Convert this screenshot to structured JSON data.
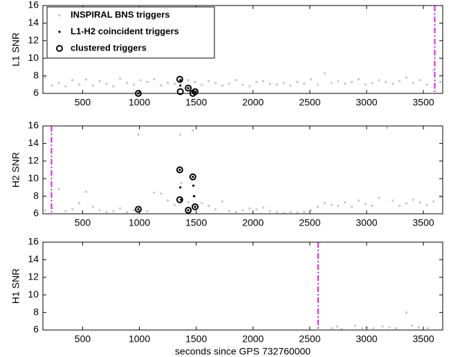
{
  "chart_data": [
    {
      "type": "scatter",
      "ylabel": "L1 SNR",
      "xlim": [
        150,
        3670
      ],
      "ylim": [
        6,
        16
      ],
      "xticks": [
        500,
        1000,
        1500,
        2000,
        2500,
        3000,
        3500
      ],
      "yticks": [
        6,
        8,
        10,
        12,
        14,
        16
      ],
      "legend": "upper left",
      "vline": 3600,
      "vline_color": "#e020e0",
      "series": [
        {
          "name": "INSPIRAL BNS triggers",
          "color": "#c8c8c8",
          "marker": "point",
          "x": [
            170,
            230,
            290,
            350,
            410,
            470,
            530,
            590,
            650,
            710,
            770,
            830,
            890,
            950,
            1010,
            1070,
            1130,
            1190,
            1250,
            1310,
            1370,
            1430,
            1490,
            1550,
            1610,
            1670,
            1730,
            1790,
            1850,
            1910,
            1970,
            2030,
            2090,
            2150,
            2210,
            2270,
            2330,
            2390,
            2450,
            2510,
            2570,
            2630,
            2690,
            2750,
            2810,
            2870,
            2930,
            2990,
            3050,
            3110,
            3170,
            3230,
            3290,
            3350,
            3410,
            3470,
            3530,
            3590,
            3650
          ],
          "values": [
            7.8,
            6.9,
            7.2,
            6.8,
            7.5,
            7.0,
            7.6,
            6.9,
            7.4,
            7.1,
            6.8,
            7.7,
            7.2,
            7.0,
            7.5,
            7.3,
            7.6,
            6.9,
            7.2,
            7.1,
            7.6,
            7.5,
            7.3,
            7.0,
            7.4,
            7.2,
            6.9,
            7.1,
            7.5,
            7.0,
            6.8,
            7.3,
            7.4,
            7.1,
            7.0,
            7.2,
            6.9,
            7.3,
            7.1,
            7.6,
            7.0,
            8.3,
            7.2,
            7.4,
            7.1,
            7.3,
            7.6,
            7.0,
            7.2,
            7.5,
            7.3,
            7.1,
            7.4,
            7.8,
            7.2,
            7.5,
            7.0,
            8.6,
            7.3
          ]
        },
        {
          "name": "L1-H2 coincident triggers",
          "color": "#000000",
          "marker": "dot",
          "x": [
            990,
            1360,
            1360,
            1430,
            1470,
            1490
          ],
          "values": [
            6.0,
            7.5,
            6.9,
            6.6,
            6.2,
            6.1
          ]
        },
        {
          "name": "clustered triggers",
          "color": "#000000",
          "marker": "circle",
          "x": [
            990,
            1355,
            1360,
            1430,
            1470,
            1490
          ],
          "values": [
            6.0,
            7.6,
            6.2,
            6.6,
            6.0,
            6.2
          ]
        }
      ]
    },
    {
      "type": "scatter",
      "ylabel": "H2 SNR",
      "xlim": [
        150,
        3670
      ],
      "ylim": [
        6,
        16
      ],
      "xticks": [
        500,
        1000,
        1500,
        2000,
        2500,
        3000,
        3500
      ],
      "yticks": [
        6,
        8,
        10,
        12,
        14,
        16
      ],
      "vline": 226,
      "vline_color": "#e020e0",
      "series": [
        {
          "color": "#c8c8c8",
          "marker": "point",
          "x": [
            170,
            230,
            290,
            350,
            410,
            470,
            530,
            590,
            650,
            710,
            770,
            830,
            890,
            950,
            990,
            1010,
            1070,
            1130,
            1190,
            1250,
            1310,
            1360,
            1370,
            1430,
            1470,
            1490,
            1550,
            1610,
            1670,
            1730,
            1790,
            1850,
            1910,
            1970,
            2030,
            2090,
            2150,
            2210,
            2270,
            2330,
            2390,
            2450,
            2510,
            2570,
            2630,
            2690,
            2750,
            2810,
            2870,
            2930,
            2990,
            3050,
            3110,
            3180,
            3230,
            3290,
            3350,
            3410,
            3470,
            3530,
            3590,
            3650
          ],
          "values": [
            6.4,
            6.6,
            8.8,
            6.3,
            6.5,
            7.2,
            8.5,
            6.8,
            6.4,
            6.2,
            6.3,
            6.6,
            6.2,
            6.4,
            15.0,
            6.8,
            6.3,
            8.4,
            8.3,
            7.5,
            7.0,
            15.0,
            9.5,
            7.3,
            15.5,
            8.0,
            7.2,
            6.9,
            6.5,
            7.4,
            6.3,
            6.2,
            6.4,
            6.6,
            6.5,
            6.7,
            6.3,
            6.2,
            6.1,
            6.2,
            6.1,
            6.2,
            6.4,
            6.8,
            7.2,
            7.0,
            6.9,
            7.3,
            6.8,
            7.5,
            7.1,
            6.9,
            7.8,
            15.8,
            7.5,
            6.9,
            7.2,
            7.6,
            7.3,
            7.0,
            7.4,
            7.9
          ]
        },
        {
          "color": "#000000",
          "marker": "dot",
          "x": [
            990,
            1355,
            1360,
            1365,
            1430,
            1470,
            1475,
            1480,
            1490
          ],
          "values": [
            6.5,
            11.0,
            9.0,
            7.6,
            6.4,
            10.2,
            9.2,
            8.0,
            6.8
          ]
        },
        {
          "color": "#000000",
          "marker": "circle",
          "x": [
            990,
            1355,
            1355,
            1430,
            1470,
            1490
          ],
          "values": [
            6.5,
            11.0,
            7.6,
            6.4,
            10.2,
            6.8
          ]
        }
      ]
    },
    {
      "type": "scatter",
      "ylabel": "H1 SNR",
      "xlabel": "seconds since GPS 732760000",
      "xlim": [
        150,
        3670
      ],
      "ylim": [
        6,
        16
      ],
      "xticks": [
        500,
        1000,
        1500,
        2000,
        2500,
        3000,
        3500
      ],
      "yticks": [
        6,
        8,
        10,
        12,
        14,
        16
      ],
      "vline": 2573,
      "vline_color": "#e020e0",
      "series": [
        {
          "color": "#c8c8c8",
          "marker": "point",
          "x": [
            2700,
            2740,
            2780,
            2900,
            2960,
            3000,
            3060,
            3140,
            3200,
            3260,
            3350,
            3400,
            3460,
            3540
          ],
          "values": [
            6.2,
            6.4,
            6.1,
            6.5,
            6.2,
            6.3,
            6.2,
            6.4,
            6.3,
            6.2,
            8.0,
            6.5,
            6.3,
            6.2
          ]
        }
      ]
    }
  ]
}
